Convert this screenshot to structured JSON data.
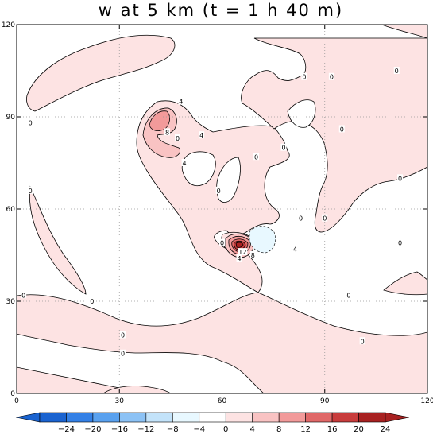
{
  "chart_data": {
    "type": "contour",
    "title": "w at 5 km (t = 1 h 40 m)",
    "xlim": [
      0,
      120
    ],
    "ylim": [
      0,
      120
    ],
    "xticks": [
      0,
      30,
      60,
      90,
      120
    ],
    "yticks": [
      0,
      30,
      60,
      90,
      120
    ],
    "grid": "dotted",
    "contour_interval": 4,
    "colorbar": {
      "position": "bottom",
      "labels": [
        "-24",
        "-20",
        "-16",
        "-12",
        "-8",
        "-4",
        "0",
        "4",
        "8",
        "12",
        "16",
        "20",
        "24"
      ],
      "colors": [
        "#1a63d0",
        "#3380e6",
        "#59a1ef",
        "#8cc2f5",
        "#c3e3fa",
        "#e8f8ff",
        "#ffffff",
        "#fde3e3",
        "#f9c3c3",
        "#f29a9a",
        "#e06868",
        "#c83c3c",
        "#a82121"
      ]
    },
    "contour_labels": [
      {
        "x": 4,
        "y": 88,
        "text": "0"
      },
      {
        "x": 4,
        "y": 66,
        "text": "0"
      },
      {
        "x": 2,
        "y": 32,
        "text": "0"
      },
      {
        "x": 22,
        "y": 30,
        "text": "0"
      },
      {
        "x": 31,
        "y": 19,
        "text": "0"
      },
      {
        "x": 31,
        "y": 13,
        "text": "0"
      },
      {
        "x": 47,
        "y": 83,
        "text": "0"
      },
      {
        "x": 59,
        "y": 66,
        "text": "0"
      },
      {
        "x": 70,
        "y": 77,
        "text": "0"
      },
      {
        "x": 78,
        "y": 80,
        "text": "0"
      },
      {
        "x": 84,
        "y": 103,
        "text": "0"
      },
      {
        "x": 92,
        "y": 103,
        "text": "0"
      },
      {
        "x": 111,
        "y": 105,
        "text": "0"
      },
      {
        "x": 95,
        "y": 86,
        "text": "0"
      },
      {
        "x": 112,
        "y": 70,
        "text": "0"
      },
      {
        "x": 90,
        "y": 57,
        "text": "0"
      },
      {
        "x": 112,
        "y": 49,
        "text": "0"
      },
      {
        "x": 83,
        "y": 57,
        "text": "0"
      },
      {
        "x": 60,
        "y": 49,
        "text": "0"
      },
      {
        "x": 97,
        "y": 32,
        "text": "0"
      },
      {
        "x": 101,
        "y": 17,
        "text": "0"
      },
      {
        "x": 48,
        "y": 95,
        "text": "4"
      },
      {
        "x": 54,
        "y": 84,
        "text": "4"
      },
      {
        "x": 49,
        "y": 75,
        "text": "4"
      },
      {
        "x": 44,
        "y": 85,
        "text": "8"
      },
      {
        "x": 66,
        "y": 46,
        "text": "12"
      },
      {
        "x": 69,
        "y": 45,
        "text": "8"
      },
      {
        "x": 65,
        "y": 44,
        "text": "4"
      },
      {
        "x": 81,
        "y": 47,
        "text": "-4"
      }
    ]
  }
}
